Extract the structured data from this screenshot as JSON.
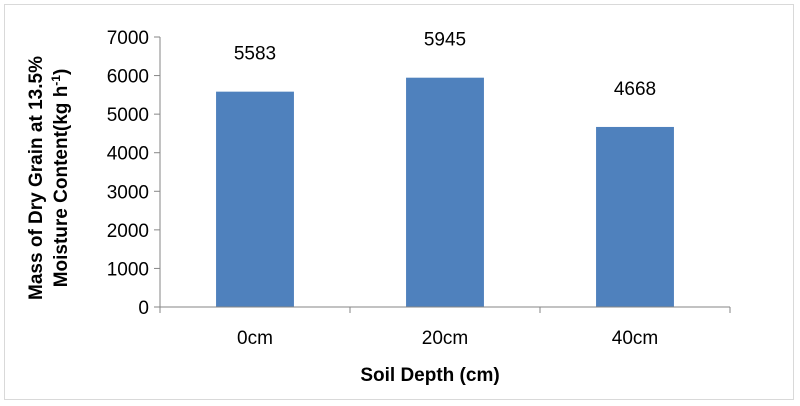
{
  "chart_data": {
    "type": "bar",
    "categories": [
      "0cm",
      "20cm",
      "40cm"
    ],
    "values": [
      5583,
      5945,
      4668
    ],
    "data_labels": [
      "5583",
      "5945",
      "4668"
    ],
    "title": "",
    "xlabel": "Soil Depth (cm)",
    "ylabel_line1": "Mass of Dry Grain at 13.5%",
    "ylabel_line2_main": "Moisture Content(kg h",
    "ylabel_line2_sup": "-1",
    "ylabel_line2_end": ")",
    "ylim": [
      0,
      7000
    ],
    "yticks": [
      "0",
      "1000",
      "2000",
      "3000",
      "4000",
      "5000",
      "6000",
      "7000"
    ],
    "grid": false,
    "legend": "none",
    "bar_color": "#4f81bd"
  }
}
